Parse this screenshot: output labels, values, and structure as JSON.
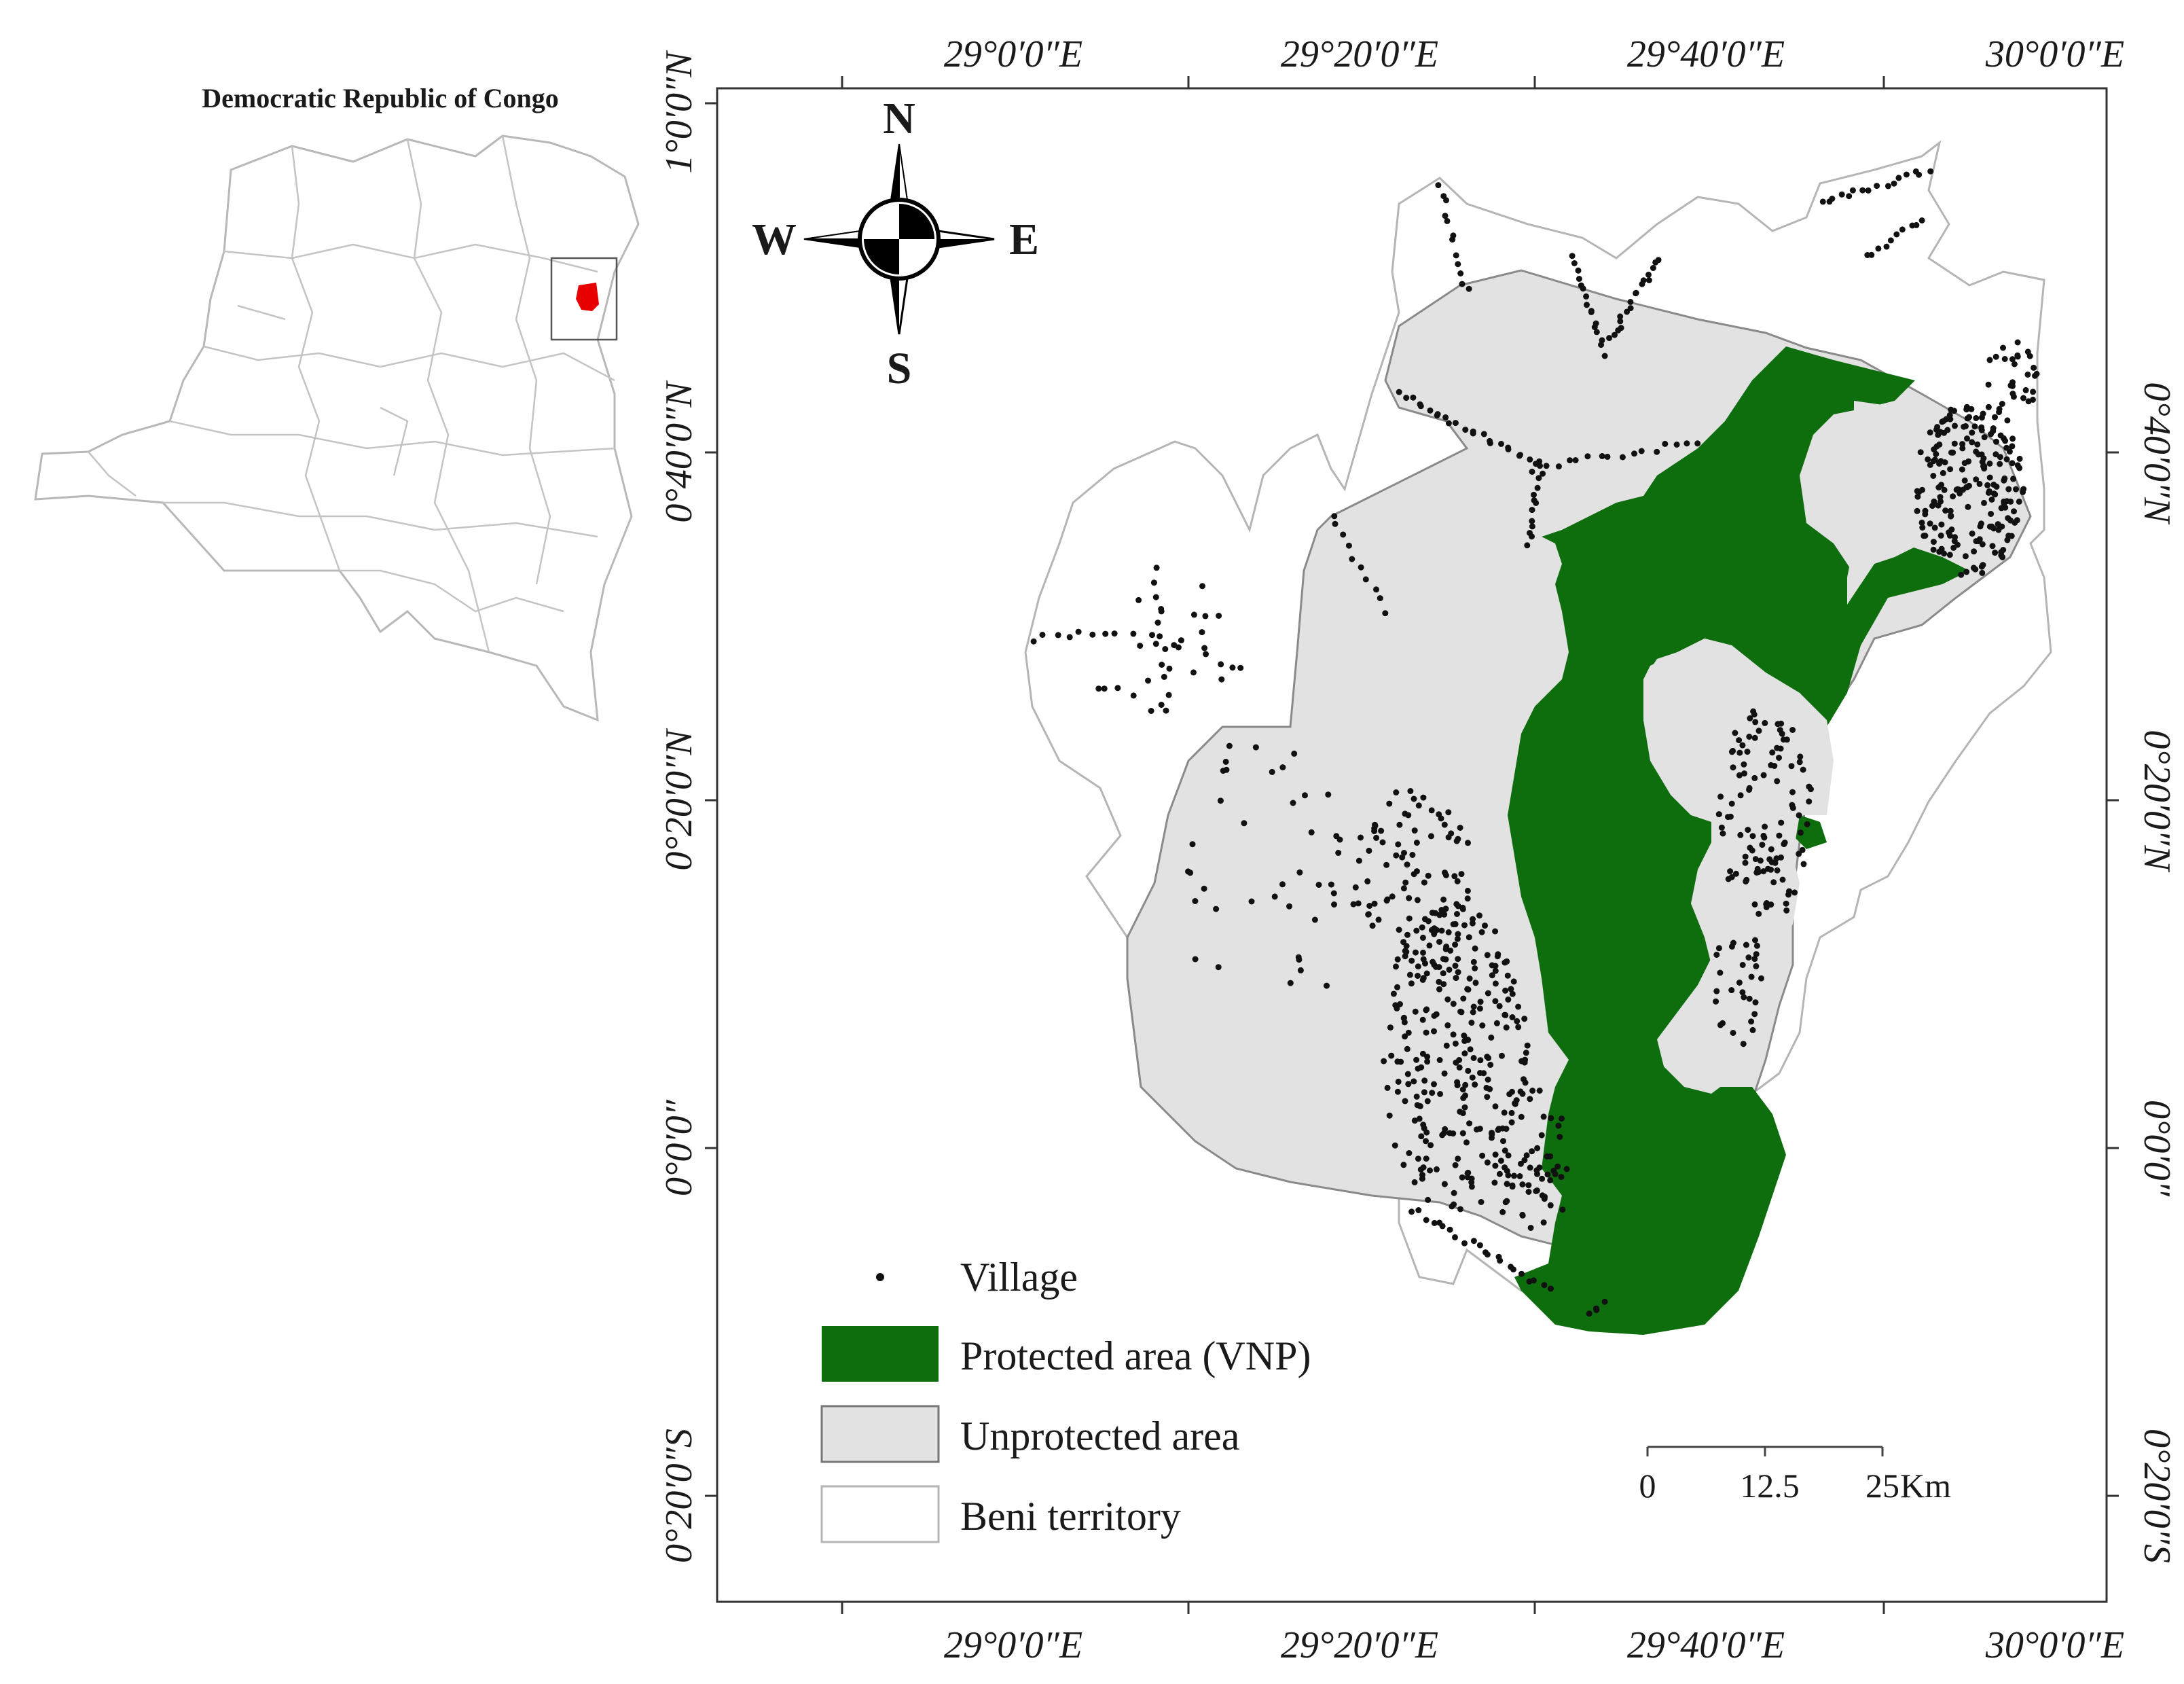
{
  "inset": {
    "title": "Democratic Republic of Congo"
  },
  "compass": {
    "n": "N",
    "s": "S",
    "e": "E",
    "w": "W"
  },
  "axes": {
    "top_labels": [
      "29°0′0″E",
      "29°20′0″E",
      "29°40′0″E",
      "30°0′0″E"
    ],
    "bottom_labels": [
      "29°0′0″E",
      "29°20′0″E",
      "29°40′0″E",
      "30°0′0″E"
    ],
    "left_labels": [
      "1°0′0″N",
      "0°40′0″N",
      "0°20′0″N",
      "0°0′0″",
      "0°20′0″S"
    ],
    "right_labels": [
      "0°40′0″N",
      "0°20′0″N",
      "0°0′0″",
      "0°20′0″S"
    ]
  },
  "legend": {
    "village": "Village",
    "protected": "Protected area (VNP)",
    "unprotected": "Unprotected area",
    "territory": "Beni territory"
  },
  "scalebar": {
    "t0": "0",
    "t1": "12.5",
    "t2": "25",
    "unit": "Km"
  },
  "colors": {
    "protected": "#0e6e0e",
    "unprotected": "#e2e2e2",
    "territory": "#ffffff",
    "village": "#111111",
    "highlight": "#e80000"
  }
}
